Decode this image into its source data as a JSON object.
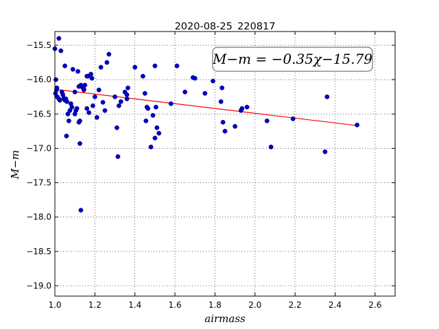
{
  "chart_data": {
    "type": "scatter",
    "title": "2020-08-25_220817",
    "xlabel": "airmass",
    "ylabel": "M−m",
    "xlim": [
      1.0,
      2.7
    ],
    "ylim": [
      -19.15,
      -15.3
    ],
    "y_inverted": true,
    "grid": true,
    "x_ticks": [
      1.0,
      1.2,
      1.4,
      1.6,
      1.8,
      2.0,
      2.2,
      2.4,
      2.6
    ],
    "x_tick_labels": [
      "1.0",
      "1.2",
      "1.4",
      "1.6",
      "1.8",
      "2.0",
      "2.2",
      "2.4",
      "2.6"
    ],
    "y_ticks": [
      -15.5,
      -16.0,
      -16.5,
      -17.0,
      -17.5,
      -18.0,
      -18.5,
      -19.0
    ],
    "y_tick_labels": [
      "−15.5",
      "−16.0",
      "−16.5",
      "−17.0",
      "−17.5",
      "−18.0",
      "−18.5",
      "−19.0"
    ],
    "annotation": "M−m = −0.35χ−15.79",
    "fit_line": {
      "slope": -0.35,
      "intercept": -15.79,
      "x_range": [
        1.0,
        2.51
      ],
      "color": "#ff0000"
    },
    "marker_color": "#0000cc",
    "x": [
      1.0,
      1.005,
      1.02,
      1.03,
      1.01,
      1.003,
      1.012,
      1.008,
      1.025,
      1.035,
      1.04,
      1.05,
      1.055,
      1.058,
      1.06,
      1.065,
      1.07,
      1.08,
      1.085,
      1.09,
      1.1,
      1.105,
      1.11,
      1.115,
      1.12,
      1.125,
      1.13,
      1.14,
      1.145,
      1.15,
      1.16,
      1.165,
      1.17,
      1.18,
      1.19,
      1.2,
      1.21,
      1.22,
      1.23,
      1.24,
      1.25,
      1.26,
      1.27,
      1.3,
      1.31,
      1.315,
      1.33,
      1.35,
      1.36,
      1.365,
      1.4,
      1.44,
      1.45,
      1.46,
      1.465,
      1.48,
      1.49,
      1.5,
      1.505,
      1.51,
      1.52,
      1.58,
      1.61,
      1.65,
      1.69,
      1.7,
      1.75,
      1.79,
      1.83,
      1.835,
      1.84,
      1.85,
      1.9,
      1.93,
      1.935,
      1.96,
      2.06,
      2.08,
      2.19,
      2.35,
      2.36,
      2.51,
      1.02,
      1.045,
      1.1,
      1.12,
      1.13,
      1.16,
      1.185,
      1.32,
      1.36,
      1.455,
      1.5,
      1.05,
      1.075,
      1.125,
      1.145
    ],
    "y": [
      -15.55,
      -16.0,
      -15.4,
      -15.58,
      -16.12,
      -16.2,
      -16.25,
      -16.15,
      -16.3,
      -16.18,
      -16.22,
      -15.8,
      -16.28,
      -16.82,
      -16.32,
      -16.5,
      -16.6,
      -16.35,
      -16.4,
      -15.85,
      -16.18,
      -16.45,
      -16.42,
      -15.88,
      -16.62,
      -16.93,
      -17.9,
      -16.12,
      -16.15,
      -16.08,
      -16.42,
      -15.95,
      -16.48,
      -15.92,
      -16.38,
      -16.25,
      -16.55,
      -16.15,
      -15.82,
      -16.33,
      -16.45,
      -15.75,
      -15.63,
      -16.25,
      -16.7,
      -17.12,
      -16.32,
      -16.18,
      -16.28,
      -16.12,
      -15.82,
      -15.95,
      -16.2,
      -16.4,
      -16.42,
      -16.98,
      -16.52,
      -15.8,
      -16.4,
      -16.7,
      -16.78,
      -16.35,
      -15.8,
      -16.18,
      -15.97,
      -15.98,
      -16.2,
      -16.02,
      -16.32,
      -16.12,
      -16.62,
      -16.75,
      -16.68,
      -16.45,
      -16.42,
      -16.4,
      -16.6,
      -16.98,
      -16.57,
      -17.05,
      -16.25,
      -16.66,
      -16.28,
      -16.27,
      -16.5,
      -16.1,
      -16.08,
      -15.95,
      -15.98,
      -16.38,
      -16.22,
      -16.6,
      -16.85,
      -16.3,
      -16.45,
      -16.6,
      -16.14
    ]
  }
}
